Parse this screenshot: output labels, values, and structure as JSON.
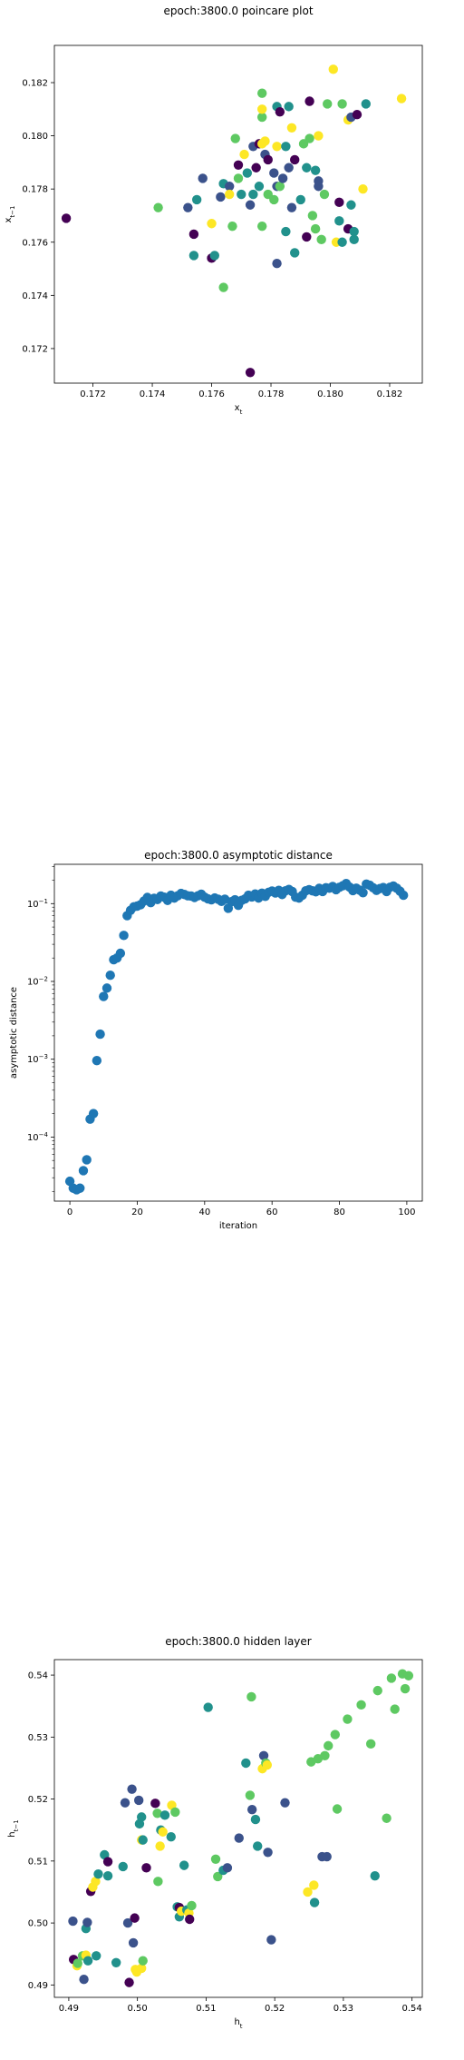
{
  "colors": {
    "viridis": [
      "#440154",
      "#3b528b",
      "#21918c",
      "#5ec962",
      "#fde725"
    ],
    "asym_point": "#1f77b4"
  },
  "chart_data": [
    {
      "type": "scatter",
      "title": "epoch:3800.0 poincare plot",
      "xlabel": "x_t",
      "ylabel": "x_{t-1}",
      "xlim": [
        0.1707,
        0.1831
      ],
      "ylim": [
        0.1707,
        0.1834
      ],
      "xticks": [
        0.172,
        0.174,
        0.176,
        0.178,
        0.18,
        0.182
      ],
      "yticks": [
        0.172,
        0.174,
        0.176,
        0.178,
        0.18,
        0.182
      ],
      "tick_labels": [
        "0.172",
        "0.174",
        "0.176",
        "0.178",
        "0.180",
        "0.182"
      ],
      "colormap": "viridis",
      "points": [
        [
          0.1711,
          0.1769,
          0
        ],
        [
          0.1742,
          0.1773,
          3
        ],
        [
          0.1752,
          0.1773,
          1
        ],
        [
          0.1754,
          0.1755,
          2
        ],
        [
          0.1754,
          0.1763,
          0
        ],
        [
          0.1755,
          0.1776,
          2
        ],
        [
          0.1757,
          0.1784,
          1
        ],
        [
          0.176,
          0.1767,
          4
        ],
        [
          0.176,
          0.1754,
          0
        ],
        [
          0.1761,
          0.1755,
          2
        ],
        [
          0.1763,
          0.1777,
          1
        ],
        [
          0.1764,
          0.1743,
          3
        ],
        [
          0.1764,
          0.1782,
          2
        ],
        [
          0.1766,
          0.1781,
          1
        ],
        [
          0.1766,
          0.1778,
          4
        ],
        [
          0.1767,
          0.1766,
          3
        ],
        [
          0.1768,
          0.1799,
          3
        ],
        [
          0.1769,
          0.1789,
          0
        ],
        [
          0.1769,
          0.1784,
          3
        ],
        [
          0.177,
          0.1778,
          2
        ],
        [
          0.1771,
          0.1793,
          4
        ],
        [
          0.1772,
          0.1786,
          2
        ],
        [
          0.1773,
          0.1774,
          1
        ],
        [
          0.1773,
          0.1711,
          0
        ],
        [
          0.1774,
          0.1796,
          1
        ],
        [
          0.1774,
          0.1778,
          2
        ],
        [
          0.1775,
          0.1788,
          0
        ],
        [
          0.1776,
          0.1797,
          0
        ],
        [
          0.1776,
          0.1781,
          2
        ],
        [
          0.1777,
          0.1807,
          3
        ],
        [
          0.1777,
          0.1816,
          3
        ],
        [
          0.1777,
          0.181,
          4
        ],
        [
          0.1777,
          0.1797,
          4
        ],
        [
          0.1777,
          0.1766,
          3
        ],
        [
          0.1778,
          0.1798,
          4
        ],
        [
          0.1778,
          0.1793,
          1
        ],
        [
          0.1779,
          0.1791,
          0
        ],
        [
          0.1779,
          0.1778,
          3
        ],
        [
          0.1781,
          0.1786,
          1
        ],
        [
          0.1781,
          0.1776,
          3
        ],
        [
          0.1782,
          0.1811,
          2
        ],
        [
          0.1782,
          0.1781,
          1
        ],
        [
          0.1782,
          0.1796,
          4
        ],
        [
          0.1782,
          0.1752,
          1
        ],
        [
          0.1783,
          0.1809,
          0
        ],
        [
          0.1783,
          0.1781,
          3
        ],
        [
          0.1784,
          0.1784,
          1
        ],
        [
          0.1785,
          0.1796,
          2
        ],
        [
          0.1785,
          0.1764,
          2
        ],
        [
          0.1786,
          0.1811,
          2
        ],
        [
          0.1786,
          0.1788,
          1
        ],
        [
          0.1787,
          0.1803,
          4
        ],
        [
          0.1787,
          0.1773,
          1
        ],
        [
          0.1788,
          0.1791,
          0
        ],
        [
          0.1788,
          0.1756,
          2
        ],
        [
          0.179,
          0.1776,
          2
        ],
        [
          0.1791,
          0.1797,
          3
        ],
        [
          0.1792,
          0.1762,
          0
        ],
        [
          0.1792,
          0.1788,
          2
        ],
        [
          0.1793,
          0.1799,
          3
        ],
        [
          0.1793,
          0.1813,
          0
        ],
        [
          0.1794,
          0.177,
          3
        ],
        [
          0.1795,
          0.1765,
          3
        ],
        [
          0.1795,
          0.1787,
          2
        ],
        [
          0.1796,
          0.18,
          4
        ],
        [
          0.1796,
          0.1783,
          1
        ],
        [
          0.1796,
          0.1781,
          1
        ],
        [
          0.1797,
          0.1761,
          3
        ],
        [
          0.1798,
          0.1778,
          3
        ],
        [
          0.1799,
          0.1812,
          3
        ],
        [
          0.1801,
          0.1825,
          4
        ],
        [
          0.1802,
          0.176,
          4
        ],
        [
          0.1803,
          0.1775,
          0
        ],
        [
          0.1803,
          0.1768,
          2
        ],
        [
          0.1804,
          0.176,
          2
        ],
        [
          0.1804,
          0.1812,
          3
        ],
        [
          0.1806,
          0.1765,
          0
        ],
        [
          0.1806,
          0.1806,
          4
        ],
        [
          0.1807,
          0.1774,
          2
        ],
        [
          0.1807,
          0.1807,
          1
        ],
        [
          0.1808,
          0.1761,
          2
        ],
        [
          0.1808,
          0.1764,
          2
        ],
        [
          0.1809,
          0.1808,
          0
        ],
        [
          0.1811,
          0.178,
          4
        ],
        [
          0.1812,
          0.1812,
          2
        ],
        [
          0.1824,
          0.1814,
          4
        ]
      ]
    },
    {
      "type": "scatter",
      "title": "epoch:3800.0 asymptotic distance",
      "xlabel": "iteration",
      "ylabel": "asymptotic distance",
      "yscale": "log",
      "xlim": [
        -4.6,
        104.6
      ],
      "ylim": [
        1.5e-05,
        0.32
      ],
      "xticks": [
        0,
        20,
        40,
        60,
        80,
        100
      ],
      "yticks": [
        -4,
        -3,
        -2,
        -1
      ],
      "x": [
        0,
        1,
        2,
        3,
        4,
        5,
        6,
        7,
        8,
        9,
        10,
        11,
        12,
        13,
        14,
        15,
        16,
        17,
        18,
        19,
        20,
        21,
        22,
        23,
        24,
        25,
        26,
        27,
        28,
        29,
        30,
        31,
        32,
        33,
        34,
        35,
        36,
        37,
        38,
        39,
        40,
        41,
        42,
        43,
        44,
        45,
        46,
        47,
        48,
        49,
        50,
        51,
        52,
        53,
        54,
        55,
        56,
        57,
        58,
        59,
        60,
        61,
        62,
        63,
        64,
        65,
        66,
        67,
        68,
        69,
        70,
        71,
        72,
        73,
        74,
        75,
        76,
        77,
        78,
        79,
        80,
        81,
        82,
        83,
        84,
        85,
        86,
        87,
        88,
        89,
        90,
        91,
        92,
        93,
        94,
        95,
        96,
        97,
        98,
        99
      ],
      "y": [
        2.7e-05,
        2.2e-05,
        2.1e-05,
        2.2e-05,
        3.7e-05,
        5.1e-05,
        0.00017,
        0.0002,
        0.00096,
        0.0021,
        0.0064,
        0.0082,
        0.012,
        0.019,
        0.02,
        0.023,
        0.039,
        0.07,
        0.082,
        0.091,
        0.093,
        0.097,
        0.108,
        0.12,
        0.103,
        0.117,
        0.113,
        0.125,
        0.121,
        0.11,
        0.128,
        0.118,
        0.126,
        0.135,
        0.131,
        0.126,
        0.125,
        0.12,
        0.126,
        0.132,
        0.121,
        0.115,
        0.112,
        0.118,
        0.114,
        0.107,
        0.114,
        0.087,
        0.106,
        0.112,
        0.095,
        0.11,
        0.115,
        0.128,
        0.122,
        0.133,
        0.118,
        0.136,
        0.124,
        0.14,
        0.145,
        0.137,
        0.148,
        0.131,
        0.146,
        0.152,
        0.143,
        0.121,
        0.118,
        0.128,
        0.146,
        0.151,
        0.146,
        0.142,
        0.157,
        0.143,
        0.16,
        0.158,
        0.166,
        0.151,
        0.162,
        0.17,
        0.181,
        0.163,
        0.147,
        0.158,
        0.149,
        0.138,
        0.178,
        0.172,
        0.16,
        0.148,
        0.156,
        0.161,
        0.143,
        0.162,
        0.168,
        0.158,
        0.144,
        0.128
      ]
    },
    {
      "type": "scatter",
      "title": "epoch:3800.0 hidden layer",
      "xlabel": "h_t",
      "ylabel": "h_{t-1}",
      "xlim": [
        0.4879,
        0.5415
      ],
      "ylim": [
        0.488,
        0.5425
      ],
      "xticks": [
        0.49,
        0.5,
        0.51,
        0.52,
        0.53,
        0.54
      ],
      "yticks": [
        0.49,
        0.5,
        0.51,
        0.52,
        0.53,
        0.54
      ],
      "tick_labels": [
        "0.49",
        "0.50",
        "0.51",
        "0.52",
        "0.53",
        "0.54"
      ],
      "colormap": "viridis",
      "points": [
        [
          0.4906,
          0.5003,
          1
        ],
        [
          0.4907,
          0.4941,
          0
        ],
        [
          0.4912,
          0.4931,
          4
        ],
        [
          0.4913,
          0.4935,
          3
        ],
        [
          0.492,
          0.4947,
          3
        ],
        [
          0.4922,
          0.4909,
          1
        ],
        [
          0.4925,
          0.4948,
          4
        ],
        [
          0.4925,
          0.4991,
          2
        ],
        [
          0.4927,
          0.5001,
          1
        ],
        [
          0.4928,
          0.4939,
          2
        ],
        [
          0.4932,
          0.5051,
          0
        ],
        [
          0.4935,
          0.5058,
          4
        ],
        [
          0.4939,
          0.5067,
          4
        ],
        [
          0.494,
          0.4947,
          2
        ],
        [
          0.4943,
          0.5079,
          2
        ],
        [
          0.4952,
          0.511,
          2
        ],
        [
          0.4957,
          0.5099,
          0
        ],
        [
          0.4957,
          0.5076,
          2
        ],
        [
          0.4969,
          0.4936,
          2
        ],
        [
          0.4979,
          0.5091,
          2
        ],
        [
          0.4982,
          0.5194,
          1
        ],
        [
          0.4986,
          0.5,
          1
        ],
        [
          0.4988,
          0.4904,
          0
        ],
        [
          0.4992,
          0.5216,
          1
        ],
        [
          0.4994,
          0.4968,
          1
        ],
        [
          0.4996,
          0.5008,
          0
        ],
        [
          0.4997,
          0.4925,
          4
        ],
        [
          0.4999,
          0.4921,
          4
        ],
        [
          0.5002,
          0.5198,
          1
        ],
        [
          0.5003,
          0.516,
          2
        ],
        [
          0.5006,
          0.4927,
          4
        ],
        [
          0.5006,
          0.5134,
          4
        ],
        [
          0.5006,
          0.5171,
          2
        ],
        [
          0.5008,
          0.5134,
          2
        ],
        [
          0.5008,
          0.4939,
          3
        ],
        [
          0.5013,
          0.5089,
          0
        ],
        [
          0.5026,
          0.5193,
          0
        ],
        [
          0.5029,
          0.5177,
          3
        ],
        [
          0.503,
          0.5067,
          3
        ],
        [
          0.5033,
          0.5124,
          4
        ],
        [
          0.5034,
          0.515,
          2
        ],
        [
          0.5037,
          0.5147,
          4
        ],
        [
          0.504,
          0.5174,
          2
        ],
        [
          0.5049,
          0.5139,
          2
        ],
        [
          0.505,
          0.519,
          4
        ],
        [
          0.5055,
          0.5179,
          3
        ],
        [
          0.5058,
          0.5026,
          2
        ],
        [
          0.5061,
          0.5025,
          0
        ],
        [
          0.5061,
          0.501,
          2
        ],
        [
          0.5064,
          0.5019,
          4
        ],
        [
          0.5068,
          0.5093,
          2
        ],
        [
          0.5072,
          0.5021,
          2
        ],
        [
          0.5075,
          0.5016,
          4
        ],
        [
          0.5076,
          0.5006,
          0
        ],
        [
          0.5079,
          0.5028,
          3
        ],
        [
          0.5103,
          0.5348,
          2
        ],
        [
          0.5114,
          0.5103,
          3
        ],
        [
          0.5117,
          0.5075,
          3
        ],
        [
          0.5125,
          0.5085,
          2
        ],
        [
          0.5131,
          0.5089,
          1
        ],
        [
          0.5148,
          0.5137,
          1
        ],
        [
          0.5158,
          0.5258,
          2
        ],
        [
          0.5164,
          0.5206,
          3
        ],
        [
          0.5166,
          0.5365,
          3
        ],
        [
          0.5167,
          0.5183,
          1
        ],
        [
          0.5172,
          0.5167,
          2
        ],
        [
          0.5175,
          0.5124,
          2
        ],
        [
          0.5182,
          0.5249,
          4
        ],
        [
          0.5184,
          0.527,
          1
        ],
        [
          0.5187,
          0.5258,
          3
        ],
        [
          0.5189,
          0.5255,
          4
        ],
        [
          0.5195,
          0.4973,
          1
        ],
        [
          0.519,
          0.5114,
          1
        ],
        [
          0.5215,
          0.5194,
          1
        ],
        [
          0.5248,
          0.505,
          4
        ],
        [
          0.5253,
          0.526,
          3
        ],
        [
          0.5257,
          0.5061,
          4
        ],
        [
          0.5258,
          0.5033,
          2
        ],
        [
          0.5263,
          0.5265,
          3
        ],
        [
          0.5269,
          0.5107,
          1
        ],
        [
          0.5273,
          0.527,
          3
        ],
        [
          0.5276,
          0.5107,
          1
        ],
        [
          0.5278,
          0.5286,
          3
        ],
        [
          0.5288,
          0.5304,
          3
        ],
        [
          0.5291,
          0.5184,
          3
        ],
        [
          0.5306,
          0.5329,
          3
        ],
        [
          0.5326,
          0.5352,
          3
        ],
        [
          0.534,
          0.5289,
          3
        ],
        [
          0.5346,
          0.5076,
          2
        ],
        [
          0.535,
          0.5375,
          3
        ],
        [
          0.5363,
          0.5169,
          3
        ],
        [
          0.537,
          0.5395,
          3
        ],
        [
          0.5375,
          0.5345,
          3
        ],
        [
          0.5386,
          0.5402,
          3
        ],
        [
          0.539,
          0.5378,
          3
        ],
        [
          0.5395,
          0.5399,
          3
        ]
      ]
    }
  ]
}
